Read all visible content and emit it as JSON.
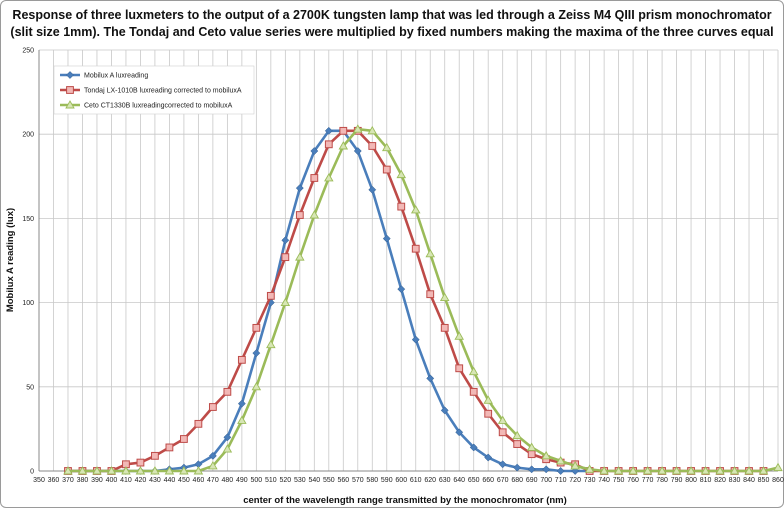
{
  "chart_data": {
    "type": "line",
    "title": "Response of three luxmeters to the output of a 2700K tungsten lamp that was led through a Zeiss M4 QIII prism monochromator (slit size 1mm). The Tondaj and Ceto value series were multiplied by fixed numbers making the maxima of the three curves equal",
    "xlabel": "center of the wavelength range transmitted by the monochromator (nm)",
    "ylabel": "Mobilux A reading (lux)",
    "xlim": [
      350,
      860
    ],
    "ylim": [
      0,
      250
    ],
    "x_ticks": [
      350,
      360,
      370,
      380,
      390,
      400,
      410,
      420,
      430,
      440,
      450,
      460,
      470,
      480,
      490,
      500,
      510,
      520,
      530,
      540,
      550,
      560,
      570,
      580,
      590,
      600,
      610,
      620,
      630,
      640,
      650,
      660,
      670,
      680,
      690,
      700,
      710,
      720,
      730,
      740,
      750,
      760,
      770,
      780,
      790,
      800,
      810,
      820,
      830,
      840,
      850,
      860
    ],
    "y_ticks": [
      0,
      50,
      100,
      150,
      200,
      250
    ],
    "grid": true,
    "legend_position": "top-left",
    "series": [
      {
        "name": "Mobilux A luxreading",
        "color": "#4a7ebb",
        "marker": "diamond",
        "points": [
          [
            370,
            0
          ],
          [
            380,
            0
          ],
          [
            390,
            0
          ],
          [
            400,
            0
          ],
          [
            410,
            0
          ],
          [
            420,
            0
          ],
          [
            430,
            0
          ],
          [
            440,
            1
          ],
          [
            450,
            2
          ],
          [
            460,
            4
          ],
          [
            470,
            9
          ],
          [
            480,
            20
          ],
          [
            490,
            40
          ],
          [
            500,
            70
          ],
          [
            510,
            100
          ],
          [
            520,
            137
          ],
          [
            530,
            168
          ],
          [
            540,
            190
          ],
          [
            550,
            202
          ],
          [
            560,
            202
          ],
          [
            570,
            190
          ],
          [
            580,
            167
          ],
          [
            590,
            138
          ],
          [
            600,
            108
          ],
          [
            610,
            78
          ],
          [
            620,
            55
          ],
          [
            630,
            36
          ],
          [
            640,
            23
          ],
          [
            650,
            14
          ],
          [
            660,
            8
          ],
          [
            670,
            4
          ],
          [
            680,
            2
          ],
          [
            690,
            1
          ],
          [
            700,
            1
          ],
          [
            710,
            0
          ],
          [
            720,
            0
          ],
          [
            730,
            0
          ]
        ]
      },
      {
        "name": "Tondaj LX-1010B luxreading corrected to mobiluxA",
        "color": "#be4b48",
        "marker": "square",
        "points": [
          [
            370,
            0
          ],
          [
            380,
            0
          ],
          [
            390,
            0
          ],
          [
            400,
            0
          ],
          [
            410,
            4
          ],
          [
            420,
            5
          ],
          [
            430,
            9
          ],
          [
            440,
            14
          ],
          [
            450,
            19
          ],
          [
            460,
            28
          ],
          [
            470,
            38
          ],
          [
            480,
            47
          ],
          [
            490,
            66
          ],
          [
            500,
            85
          ],
          [
            510,
            104
          ],
          [
            520,
            127
          ],
          [
            530,
            152
          ],
          [
            540,
            174
          ],
          [
            550,
            194
          ],
          [
            560,
            202
          ],
          [
            570,
            202
          ],
          [
            580,
            193
          ],
          [
            590,
            179
          ],
          [
            600,
            157
          ],
          [
            610,
            132
          ],
          [
            620,
            105
          ],
          [
            630,
            85
          ],
          [
            640,
            61
          ],
          [
            650,
            47
          ],
          [
            660,
            34
          ],
          [
            670,
            23
          ],
          [
            680,
            16
          ],
          [
            690,
            10
          ],
          [
            700,
            7
          ],
          [
            710,
            5
          ],
          [
            720,
            4
          ],
          [
            730,
            0
          ],
          [
            740,
            0
          ],
          [
            750,
            0
          ],
          [
            760,
            0
          ],
          [
            770,
            0
          ],
          [
            780,
            0
          ],
          [
            790,
            0
          ],
          [
            800,
            0
          ],
          [
            810,
            0
          ],
          [
            820,
            0
          ],
          [
            830,
            0
          ],
          [
            840,
            0
          ],
          [
            850,
            0
          ]
        ]
      },
      {
        "name": "Ceto CT1330B luxreadingcorrected to mobiluxA",
        "color": "#9bbb59",
        "marker": "triangle",
        "points": [
          [
            370,
            0
          ],
          [
            380,
            0
          ],
          [
            390,
            0
          ],
          [
            400,
            0
          ],
          [
            410,
            0
          ],
          [
            420,
            0
          ],
          [
            430,
            0
          ],
          [
            440,
            0
          ],
          [
            450,
            0
          ],
          [
            460,
            0
          ],
          [
            470,
            3
          ],
          [
            480,
            13
          ],
          [
            490,
            30
          ],
          [
            500,
            50
          ],
          [
            510,
            75
          ],
          [
            520,
            100
          ],
          [
            530,
            127
          ],
          [
            540,
            152
          ],
          [
            550,
            174
          ],
          [
            560,
            193
          ],
          [
            570,
            203
          ],
          [
            580,
            202
          ],
          [
            590,
            192
          ],
          [
            600,
            176
          ],
          [
            610,
            155
          ],
          [
            620,
            129
          ],
          [
            630,
            103
          ],
          [
            640,
            80
          ],
          [
            650,
            59
          ],
          [
            660,
            42
          ],
          [
            670,
            30
          ],
          [
            680,
            21
          ],
          [
            690,
            14
          ],
          [
            700,
            9
          ],
          [
            710,
            6
          ],
          [
            720,
            3
          ],
          [
            730,
            1
          ],
          [
            740,
            0
          ],
          [
            750,
            0
          ],
          [
            760,
            0
          ],
          [
            770,
            0
          ],
          [
            780,
            0
          ],
          [
            790,
            0
          ],
          [
            800,
            0
          ],
          [
            810,
            0
          ],
          [
            820,
            0
          ],
          [
            830,
            0
          ],
          [
            840,
            0
          ],
          [
            850,
            0
          ],
          [
            860,
            2
          ]
        ]
      }
    ]
  }
}
